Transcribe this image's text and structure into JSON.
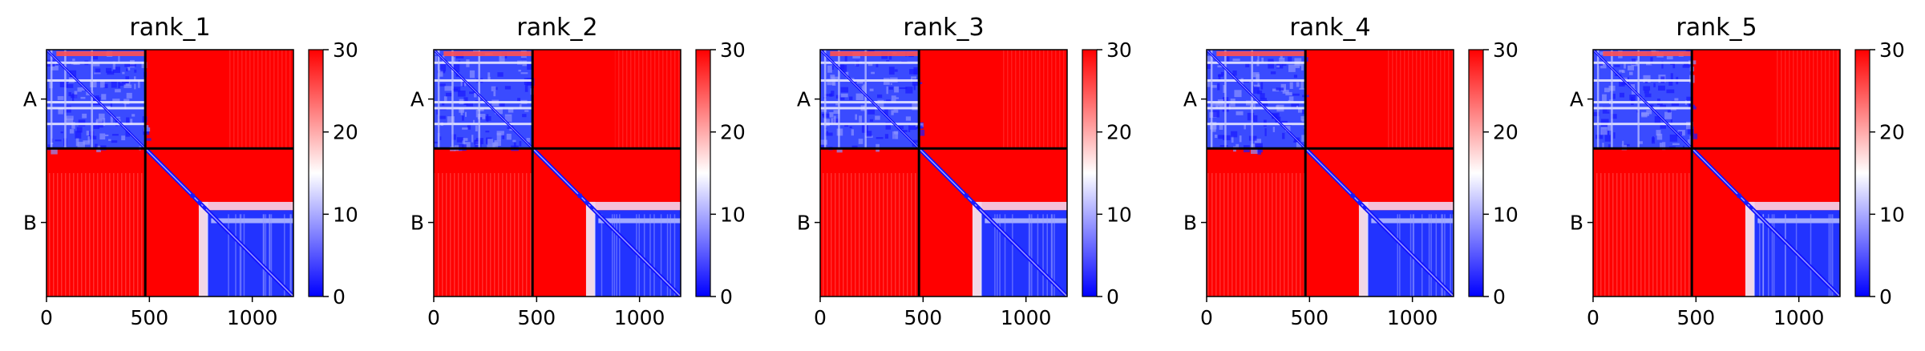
{
  "chart_data": {
    "type": "heatmap",
    "colormap": "bwr",
    "colors": {
      "low": "#0000ff",
      "mid": "#ffffff",
      "high": "#ff0000",
      "separator": "#000000"
    },
    "shared": {
      "xlim": [
        0,
        1200
      ],
      "xticks": [
        0,
        500,
        1000
      ],
      "chain_boundary": 480,
      "chains": [
        {
          "label": "A",
          "start": 0,
          "end": 480
        },
        {
          "label": "B",
          "start": 480,
          "end": 1200
        }
      ],
      "clim": [
        0,
        30
      ],
      "colorbar_ticks": [
        0,
        10,
        20,
        30
      ],
      "description": "Predicted aligned error (PAE) matrix; low error blue, high error red"
    },
    "panels": [
      {
        "title": "rank_1"
      },
      {
        "title": "rank_2"
      },
      {
        "title": "rank_3"
      },
      {
        "title": "rank_4"
      },
      {
        "title": "rank_5"
      }
    ]
  }
}
